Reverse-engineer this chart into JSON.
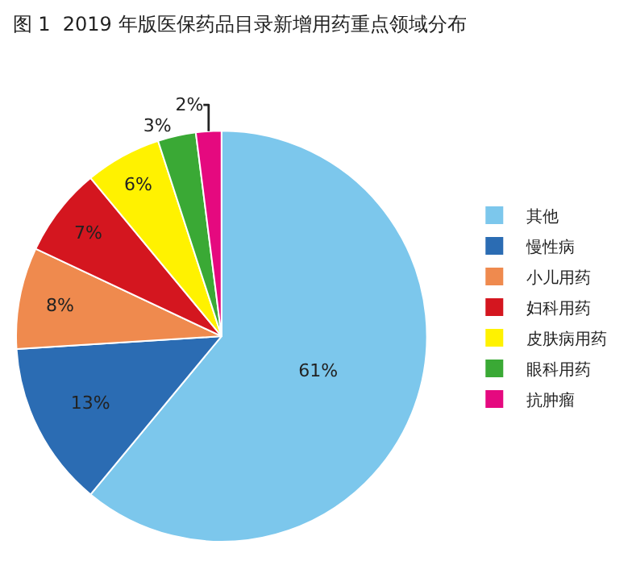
{
  "chart_data": {
    "type": "pie",
    "title": "图 1  2019 年版医保药品目录新增用药重点领域分布",
    "categories": [
      "其他",
      "慢性病",
      "小儿用药",
      "妇科用药",
      "皮肤病用药",
      "眼科用药",
      "抗肿瘤"
    ],
    "values": [
      61,
      13,
      8,
      7,
      6,
      3,
      2
    ],
    "value_labels": [
      "61%",
      "13%",
      "8%",
      "7%",
      "6%",
      "3%",
      "2%"
    ],
    "colors": [
      "#7cc7ec",
      "#2b6cb3",
      "#ef8a4e",
      "#d4161f",
      "#fff200",
      "#3aa935",
      "#e5097f"
    ],
    "legend": "right"
  }
}
